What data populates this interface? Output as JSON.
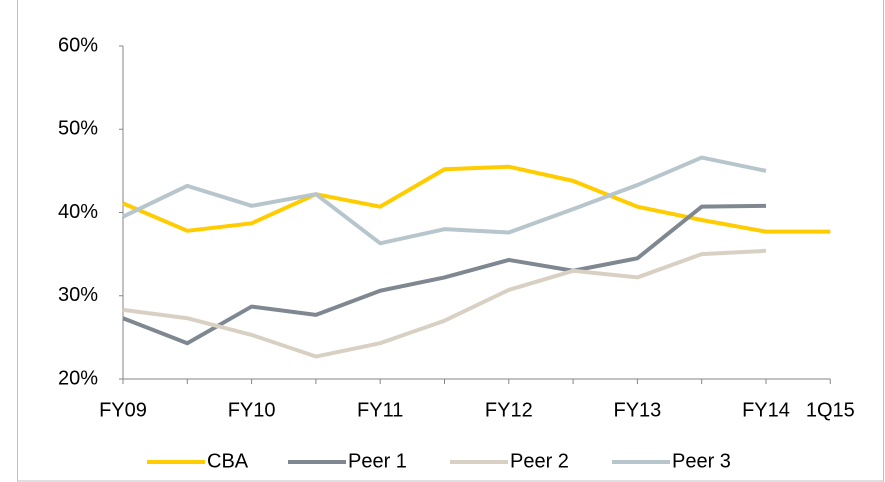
{
  "chart_data": {
    "type": "line",
    "categories": [
      "FY09",
      null,
      "FY10",
      null,
      "FY11",
      null,
      "FY12",
      null,
      "FY13",
      null,
      "FY14",
      "1Q15"
    ],
    "series": [
      {
        "name": "CBA",
        "color": "#ffcc00",
        "values": [
          41.1,
          37.8,
          38.7,
          42.2,
          40.7,
          45.2,
          45.5,
          43.8,
          40.7,
          39.1,
          37.7,
          37.7
        ]
      },
      {
        "name": "Peer 1",
        "color": "#7f8891",
        "values": [
          27.3,
          24.3,
          28.7,
          27.7,
          30.6,
          32.2,
          34.3,
          33.0,
          34.5,
          40.7,
          40.8,
          null
        ]
      },
      {
        "name": "Peer 2",
        "color": "#d9d0c4",
        "values": [
          28.3,
          27.3,
          25.3,
          22.7,
          24.3,
          27.0,
          30.7,
          33.0,
          32.2,
          35.0,
          35.4,
          null
        ]
      },
      {
        "name": "Peer 3",
        "color": "#b7c5cc",
        "values": [
          39.5,
          43.2,
          40.8,
          42.2,
          36.3,
          38.0,
          37.6,
          40.4,
          43.3,
          46.6,
          45.0,
          null
        ]
      }
    ],
    "ylim": [
      20,
      60
    ],
    "yticks": [
      {
        "value": 20,
        "label": "20%"
      },
      {
        "value": 30,
        "label": "30%"
      },
      {
        "value": 40,
        "label": "40%"
      },
      {
        "value": 50,
        "label": "50%"
      },
      {
        "value": 60,
        "label": "60%"
      }
    ],
    "grid": false,
    "legend": "bottom"
  }
}
